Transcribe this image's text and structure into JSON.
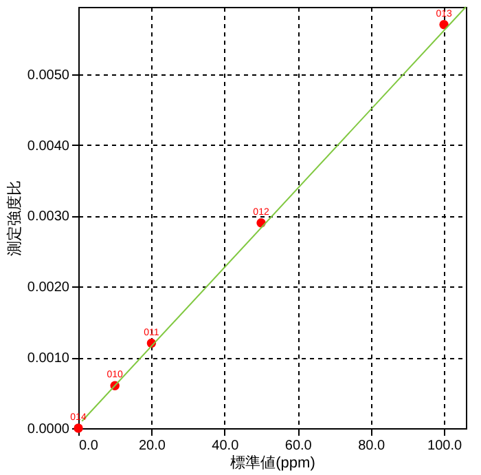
{
  "chart_data": {
    "type": "scatter",
    "xlabel": "標準値(ppm)",
    "ylabel": "測定強度比",
    "xlim": [
      0,
      106
    ],
    "ylim": [
      0,
      0.00595
    ],
    "xticks": [
      {
        "value": 0,
        "label": "0.0"
      },
      {
        "value": 20,
        "label": "20.0"
      },
      {
        "value": 40,
        "label": "40.0"
      },
      {
        "value": 60,
        "label": "60.0"
      },
      {
        "value": 80,
        "label": "80.0"
      },
      {
        "value": 100,
        "label": "100.0"
      }
    ],
    "yticks": [
      {
        "value": 0,
        "label": "0.0000"
      },
      {
        "value": 0.001,
        "label": "0.0010"
      },
      {
        "value": 0.002,
        "label": "0.0020"
      },
      {
        "value": 0.003,
        "label": "0.0030"
      },
      {
        "value": 0.004,
        "label": "0.0040"
      },
      {
        "value": 0.005,
        "label": "0.0050"
      }
    ],
    "grid": true,
    "series": [
      {
        "marker": "circle",
        "color": "#ff0000",
        "x": [
          0,
          10,
          20,
          50,
          100
        ],
        "values": [
          0,
          0.0006,
          0.0012,
          0.0029,
          0.0057
        ]
      },
      {
        "type": "line",
        "color": "#80c840",
        "x": [
          1,
          106
        ],
        "values": [
          0.0001,
          0.00595
        ]
      }
    ],
    "annotations": [
      {
        "text": "014",
        "x": 0,
        "y": 0
      },
      {
        "text": "010",
        "x": 10,
        "y": 0.0006
      },
      {
        "text": "011",
        "x": 20,
        "y": 0.0012
      },
      {
        "text": "012",
        "x": 50,
        "y": 0.0029
      },
      {
        "text": "013",
        "x": 100,
        "y": 0.0057
      }
    ]
  }
}
